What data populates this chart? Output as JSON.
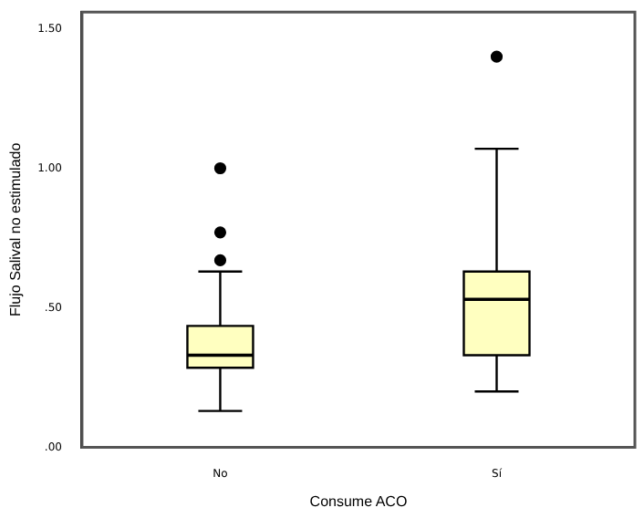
{
  "chart_data": {
    "type": "box",
    "xlabel": "Consume ACO",
    "ylabel": "Flujo Salival no estimulado",
    "categories": [
      "No",
      "Sí"
    ],
    "color": "#ffffc0",
    "boxes": [
      {
        "low": 0.13,
        "q1": 0.285,
        "median": 0.33,
        "q3": 0.435,
        "high": 0.63,
        "outliers": [
          0.67,
          0.77,
          1.0
        ]
      },
      {
        "low": 0.2,
        "q1": 0.33,
        "median": 0.53,
        "q3": 0.63,
        "high": 1.07,
        "outliers": [
          1.4
        ]
      }
    ],
    "ylim": [
      0,
      1.56
    ],
    "yticks": [
      {
        "value": 0,
        "label": ".00"
      },
      {
        "value": 0.5,
        "label": ".50"
      },
      {
        "value": 1,
        "label": "1.00"
      },
      {
        "value": 1.5,
        "label": "1.50"
      }
    ],
    "grid": false
  }
}
